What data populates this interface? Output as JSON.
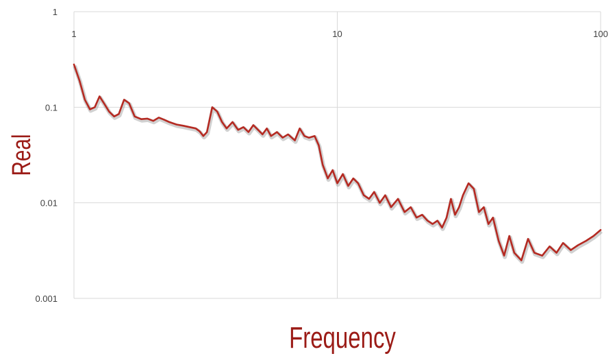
{
  "chart_data": {
    "type": "line",
    "title": "",
    "xlabel": "Frequency",
    "ylabel": "Real",
    "x_scale": "log",
    "y_scale": "log",
    "xlim": [
      1,
      100
    ],
    "ylim": [
      0.001,
      1
    ],
    "x_ticks": [
      "1",
      "10",
      "100"
    ],
    "y_ticks": [
      "1",
      "0.1",
      "0.01",
      "0.001"
    ],
    "grid": true,
    "legend": "none",
    "colors": {
      "series": "#b52a22",
      "axis_title": "#9b1b16",
      "grid": "#d9d9d9"
    },
    "series": [
      {
        "x": [
          1.0,
          1.05,
          1.1,
          1.15,
          1.2,
          1.25,
          1.3,
          1.36,
          1.42,
          1.48,
          1.55,
          1.62,
          1.7,
          1.8,
          1.9,
          2.0,
          2.1,
          2.2,
          2.3,
          2.45,
          2.6,
          2.75,
          2.9,
          3.0,
          3.1,
          3.2,
          3.35,
          3.5,
          3.65,
          3.8,
          4.0,
          4.2,
          4.4,
          4.6,
          4.8,
          5.0,
          5.2,
          5.4,
          5.6,
          5.9,
          6.2,
          6.5,
          6.9,
          7.2,
          7.5,
          7.8,
          8.2,
          8.5,
          8.8,
          9.2,
          9.6,
          10.0,
          10.5,
          11.0,
          11.5,
          12.0,
          12.6,
          13.2,
          13.8,
          14.5,
          15.2,
          16.0,
          17.0,
          18.0,
          19.0,
          20.0,
          21.0,
          22.0,
          23.0,
          24.0,
          25.0,
          26.0,
          27.0,
          28.0,
          29.0,
          30.0,
          31.5,
          33.0,
          34.5,
          36.0,
          37.5,
          39.0,
          41.0,
          43.0,
          45.0,
          47.0,
          50.0,
          53.0,
          56.0,
          60.0,
          64.0,
          68.0,
          72.0,
          77.0,
          82.0,
          88.0,
          94.0,
          100.0
        ],
        "y": [
          0.28,
          0.19,
          0.12,
          0.095,
          0.1,
          0.13,
          0.11,
          0.09,
          0.08,
          0.085,
          0.12,
          0.11,
          0.08,
          0.075,
          0.076,
          0.072,
          0.078,
          0.074,
          0.07,
          0.066,
          0.064,
          0.062,
          0.06,
          0.056,
          0.05,
          0.055,
          0.1,
          0.09,
          0.07,
          0.06,
          0.07,
          0.058,
          0.062,
          0.055,
          0.065,
          0.058,
          0.052,
          0.06,
          0.05,
          0.055,
          0.048,
          0.052,
          0.045,
          0.06,
          0.05,
          0.048,
          0.05,
          0.04,
          0.025,
          0.018,
          0.022,
          0.016,
          0.02,
          0.015,
          0.018,
          0.016,
          0.012,
          0.011,
          0.013,
          0.01,
          0.012,
          0.009,
          0.011,
          0.008,
          0.009,
          0.007,
          0.0075,
          0.0065,
          0.006,
          0.0065,
          0.0055,
          0.007,
          0.011,
          0.0075,
          0.009,
          0.012,
          0.016,
          0.014,
          0.008,
          0.009,
          0.006,
          0.007,
          0.004,
          0.0028,
          0.0045,
          0.003,
          0.0025,
          0.0042,
          0.003,
          0.0028,
          0.0035,
          0.003,
          0.0038,
          0.0032,
          0.0036,
          0.004,
          0.0045,
          0.0052
        ]
      }
    ]
  }
}
